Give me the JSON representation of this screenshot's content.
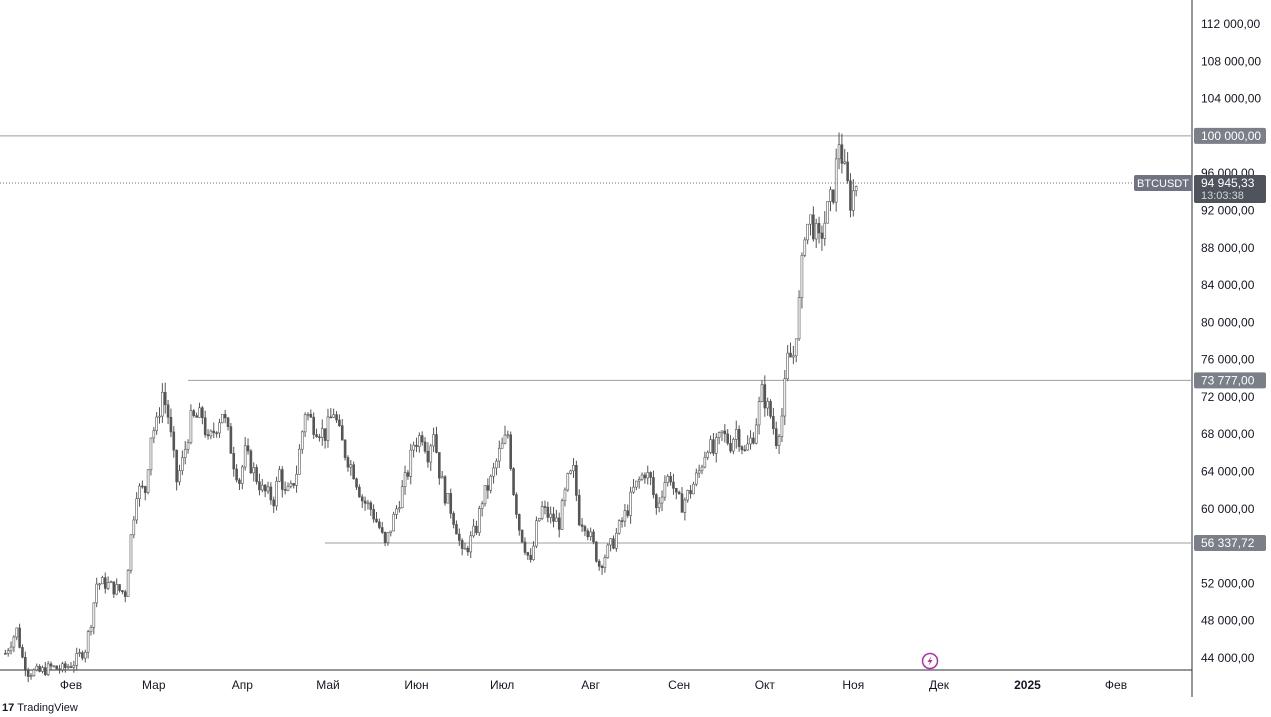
{
  "brand": {
    "logo_text": "17",
    "name": "TradingView"
  },
  "symbol": {
    "ticker": "BTCUSDT",
    "last_price": "94 945,33",
    "countdown": "13:03:38"
  },
  "levels": [
    {
      "value": 100000,
      "label": "100 000,00"
    },
    {
      "value": 73777,
      "label": "73 777,00"
    },
    {
      "value": 56337.72,
      "label": "56 337,72"
    }
  ],
  "colors": {
    "candle": "#555555",
    "level_line": "#9e9e9e",
    "label_bg": "#7b7f87",
    "ticker_bg": "#6f7480",
    "accent_icon": "#b02ea8"
  },
  "icons": {
    "lightning": "lightning-bolt-icon"
  },
  "chart_data": {
    "type": "candlestick",
    "title": "",
    "xlabel": "",
    "ylabel": "",
    "ylim": [
      42000,
      114000
    ],
    "yticks": [
      {
        "value": 112000,
        "label": "112 000,00"
      },
      {
        "value": 108000,
        "label": "108 000,00"
      },
      {
        "value": 104000,
        "label": "104 000,00"
      },
      {
        "value": 100000,
        "label": "100 000,00"
      },
      {
        "value": 96000,
        "label": "96 000,00"
      },
      {
        "value": 92000,
        "label": "92 000,00"
      },
      {
        "value": 88000,
        "label": "88 000,00"
      },
      {
        "value": 84000,
        "label": "84 000,00"
      },
      {
        "value": 80000,
        "label": "80 000,00"
      },
      {
        "value": 76000,
        "label": "76 000,00"
      },
      {
        "value": 72000,
        "label": "72 000,00"
      },
      {
        "value": 68000,
        "label": "68 000,00"
      },
      {
        "value": 64000,
        "label": "64 000,00"
      },
      {
        "value": 60000,
        "label": "60 000,00"
      },
      {
        "value": 52000,
        "label": "52 000,00"
      },
      {
        "value": 48000,
        "label": "48 000,00"
      },
      {
        "value": 44000,
        "label": "44 000,00"
      }
    ],
    "xticks": [
      {
        "label": "Фев",
        "day": 31,
        "bold": false
      },
      {
        "label": "Мар",
        "day": 60,
        "bold": false
      },
      {
        "label": "Апр",
        "day": 91,
        "bold": false
      },
      {
        "label": "Май",
        "day": 121,
        "bold": false
      },
      {
        "label": "Июн",
        "day": 152,
        "bold": false
      },
      {
        "label": "Июл",
        "day": 182,
        "bold": false
      },
      {
        "label": "Авг",
        "day": 213,
        "bold": false
      },
      {
        "label": "Сен",
        "day": 244,
        "bold": false
      },
      {
        "label": "Окт",
        "day": 274,
        "bold": false
      },
      {
        "label": "Ноя",
        "day": 305,
        "bold": false
      },
      {
        "label": "Дек",
        "day": 335,
        "bold": false
      },
      {
        "label": "2025",
        "day": 366,
        "bold": true
      },
      {
        "label": "Фев",
        "day": 397,
        "bold": false
      }
    ],
    "xlim_days": [
      8,
      430
    ],
    "anchors": [
      [
        8,
        44500
      ],
      [
        12,
        47000
      ],
      [
        14,
        44000
      ],
      [
        16,
        42500
      ],
      [
        20,
        42500
      ],
      [
        24,
        43000
      ],
      [
        28,
        42800
      ],
      [
        32,
        43500
      ],
      [
        36,
        45000
      ],
      [
        38,
        48000
      ],
      [
        40,
        52000
      ],
      [
        43,
        52000
      ],
      [
        46,
        51500
      ],
      [
        50,
        51000
      ],
      [
        52,
        57000
      ],
      [
        54,
        62000
      ],
      [
        57,
        62000
      ],
      [
        59,
        68000
      ],
      [
        61,
        69000
      ],
      [
        63,
        72500
      ],
      [
        65,
        70000
      ],
      [
        68,
        63000
      ],
      [
        70,
        65000
      ],
      [
        73,
        69500
      ],
      [
        77,
        70000
      ],
      [
        79,
        67000
      ],
      [
        82,
        69000
      ],
      [
        84,
        70500
      ],
      [
        86,
        68000
      ],
      [
        88,
        65000
      ],
      [
        90,
        63000
      ],
      [
        92,
        66000
      ],
      [
        95,
        64000
      ],
      [
        98,
        62000
      ],
      [
        102,
        61000
      ],
      [
        104,
        64000
      ],
      [
        106,
        61500
      ],
      [
        108,
        62000
      ],
      [
        110,
        64000
      ],
      [
        113,
        70500
      ],
      [
        116,
        69000
      ],
      [
        120,
        68000
      ],
      [
        123,
        70500
      ],
      [
        125,
        68000
      ],
      [
        127,
        66000
      ],
      [
        130,
        64000
      ],
      [
        133,
        61000
      ],
      [
        136,
        60000
      ],
      [
        139,
        58000
      ],
      [
        141,
        56000
      ],
      [
        143,
        58000
      ],
      [
        146,
        61000
      ],
      [
        149,
        64000
      ],
      [
        151,
        67000
      ],
      [
        154,
        68000
      ],
      [
        156,
        66000
      ],
      [
        158,
        68500
      ],
      [
        160,
        64000
      ],
      [
        162,
        61500
      ],
      [
        164,
        60000
      ],
      [
        166,
        58000
      ],
      [
        168,
        55000
      ],
      [
        170,
        56000
      ],
      [
        173,
        58000
      ],
      [
        175,
        61000
      ],
      [
        178,
        63000
      ],
      [
        181,
        66000
      ],
      [
        184,
        68000
      ],
      [
        186,
        62000
      ],
      [
        188,
        58000
      ],
      [
        190,
        56000
      ],
      [
        192,
        54000
      ],
      [
        194,
        58000
      ],
      [
        196,
        60000
      ],
      [
        199,
        59000
      ],
      [
        202,
        58500
      ],
      [
        205,
        63000
      ],
      [
        207,
        64000
      ],
      [
        209,
        59000
      ],
      [
        211,
        58500
      ],
      [
        214,
        56000
      ],
      [
        216,
        54000
      ],
      [
        218,
        55000
      ],
      [
        221,
        56500
      ],
      [
        223,
        58000
      ],
      [
        226,
        60000
      ],
      [
        228,
        62000
      ],
      [
        230,
        63000
      ],
      [
        232,
        64000
      ],
      [
        234,
        63000
      ],
      [
        236,
        60000
      ],
      [
        239,
        63000
      ],
      [
        241,
        63500
      ],
      [
        243,
        61000
      ],
      [
        245,
        60500
      ],
      [
        248,
        62000
      ],
      [
        251,
        64000
      ],
      [
        254,
        67000
      ],
      [
        256,
        66000
      ],
      [
        259,
        68000
      ],
      [
        262,
        67000
      ],
      [
        264,
        68500
      ],
      [
        267,
        66000
      ],
      [
        270,
        68000
      ],
      [
        273,
        72500
      ],
      [
        276,
        70000
      ],
      [
        278,
        67500
      ],
      [
        280,
        70000
      ],
      [
        282,
        76000
      ],
      [
        284,
        76500
      ],
      [
        286,
        82000
      ],
      [
        288,
        90000
      ],
      [
        290,
        91000
      ],
      [
        293,
        88500
      ],
      [
        296,
        92000
      ],
      [
        298,
        94000
      ],
      [
        300,
        99500
      ],
      [
        302,
        96000
      ],
      [
        304,
        93000
      ],
      [
        306,
        94945
      ]
    ],
    "y_last": 94945.33,
    "values_note_fields": [
      "anchors: [day, close]"
    ]
  }
}
